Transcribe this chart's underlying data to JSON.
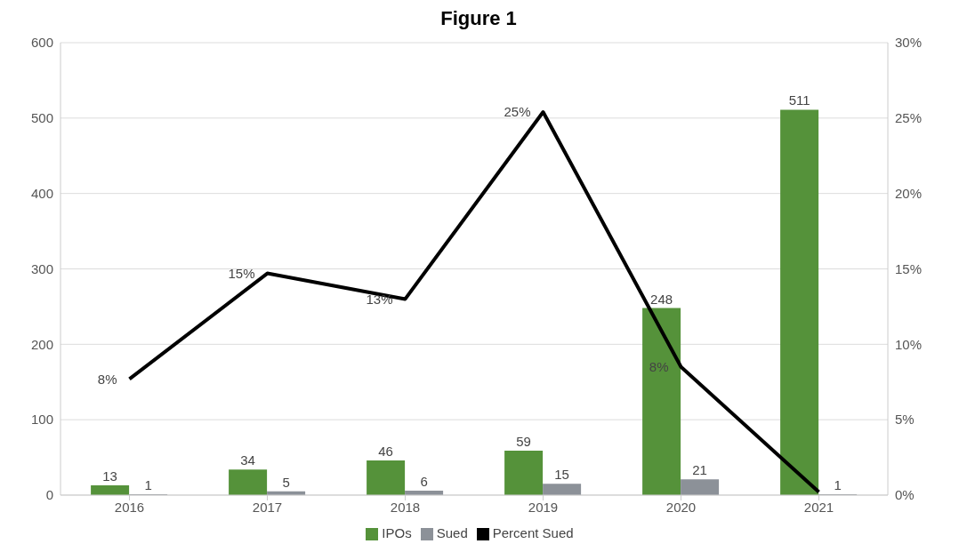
{
  "chart_data": {
    "type": "bar",
    "title": "Figure 1",
    "categories": [
      "2016",
      "2017",
      "2018",
      "2019",
      "2020",
      "2021"
    ],
    "series": [
      {
        "name": "IPOs",
        "color": "#55923a",
        "values": [
          13,
          34,
          46,
          59,
          248,
          511
        ],
        "value_labels": [
          "13",
          "34",
          "46",
          "59",
          "248",
          "511"
        ]
      },
      {
        "name": "Sued",
        "color": "#8c9198",
        "values": [
          1,
          5,
          6,
          15,
          21,
          1
        ],
        "value_labels": [
          "1",
          "5",
          "6",
          "15",
          "21",
          "1"
        ]
      },
      {
        "name": "Percent Sued",
        "type": "line",
        "axis": "y2",
        "color": "#000000",
        "values": [
          7.7,
          14.7,
          13.0,
          25.4,
          8.5,
          0.2
        ],
        "value_labels": [
          "8%",
          "15%",
          "13%",
          "25%",
          "8%",
          null
        ]
      }
    ],
    "ylim": [
      0,
      600
    ],
    "yticks": [
      0,
      100,
      200,
      300,
      400,
      500,
      600
    ],
    "y2lim": [
      0,
      30
    ],
    "y2ticks": [
      {
        "value": 0,
        "label": "0%"
      },
      {
        "value": 5,
        "label": "5%"
      },
      {
        "value": 10,
        "label": "10%"
      },
      {
        "value": 15,
        "label": "15%"
      },
      {
        "value": 20,
        "label": "20%"
      },
      {
        "value": 25,
        "label": "25%"
      },
      {
        "value": 30,
        "label": "30%"
      }
    ],
    "grid": "y",
    "legend": "bottom",
    "marker": "none",
    "line_style": "solid"
  }
}
